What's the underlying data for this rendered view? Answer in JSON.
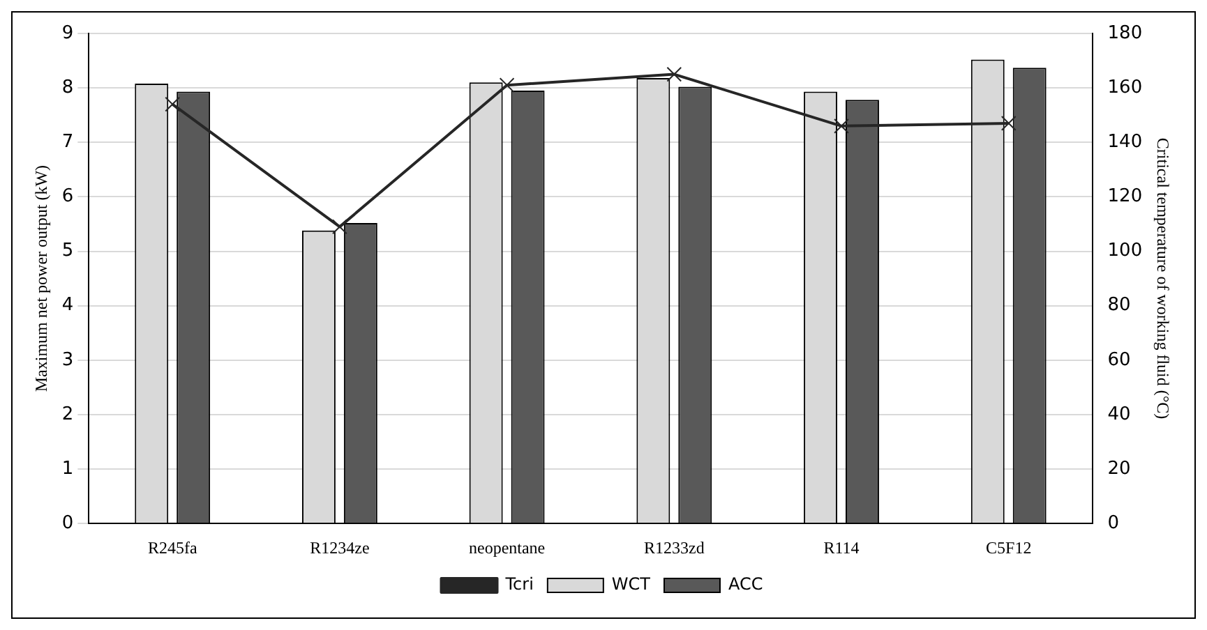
{
  "chart_data": {
    "type": "bar",
    "ylabel": "Maximum net power output (kW)",
    "y2label": "Critical temperature of working fluid (°C)",
    "categories": [
      "R245fa",
      "R1234ze",
      "neopentane",
      "R1233zd",
      "R114",
      "C5F12"
    ],
    "series": [
      {
        "name": "WCT",
        "color": "#d9d9d9",
        "values": [
          8.08,
          5.38,
          8.1,
          8.18,
          7.93,
          8.52
        ]
      },
      {
        "name": "ACC",
        "color": "#595959",
        "values": [
          7.93,
          5.52,
          7.95,
          8.02,
          7.78,
          8.37
        ]
      },
      {
        "name": "Tcri",
        "type": "line",
        "axis": "y2",
        "color": "#262626",
        "marker": "cross",
        "values": [
          154,
          109,
          161,
          165,
          146,
          147
        ]
      }
    ],
    "ylim": [
      0,
      9
    ],
    "yticks": [
      0,
      1,
      2,
      3,
      4,
      5,
      6,
      7,
      8,
      9
    ],
    "y2lim": [
      0,
      180
    ],
    "y2ticks": [
      0,
      20,
      40,
      60,
      80,
      100,
      120,
      140,
      160,
      180
    ],
    "grid": "y",
    "legend": "bottom"
  }
}
